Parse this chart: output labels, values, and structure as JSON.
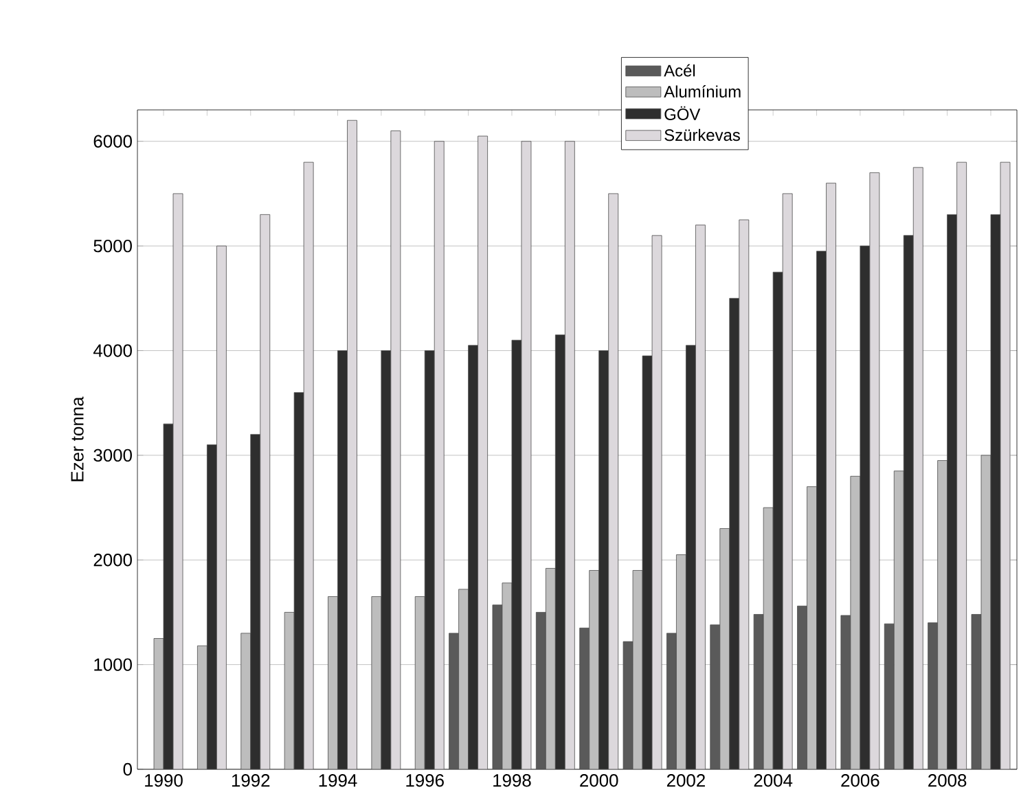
{
  "chart_data": {
    "type": "bar",
    "ylabel": "Ezer tonna",
    "categories": [
      "1990",
      null,
      "1992",
      null,
      "1994",
      null,
      "1996",
      null,
      "1998",
      null,
      "2000",
      null,
      "2002",
      null,
      "2004",
      null,
      "2006",
      null,
      "2008",
      null
    ],
    "series": [
      {
        "name": "Acél",
        "color": "#5a5a5a",
        "values": [
          null,
          null,
          null,
          null,
          null,
          null,
          null,
          1300,
          1570,
          1500,
          1350,
          1220,
          1300,
          1380,
          1480,
          1560,
          1470,
          1390,
          1400,
          1480
        ]
      },
      {
        "name": "Alumínium",
        "color": "#bdbdbd",
        "values": [
          1250,
          1180,
          1300,
          1500,
          1650,
          1650,
          1650,
          1720,
          1780,
          1920,
          1900,
          1900,
          2050,
          2300,
          2500,
          2700,
          2800,
          2850,
          2950,
          3000
        ]
      },
      {
        "name": "GÖV",
        "color": "#2e2e2e",
        "values": [
          3300,
          3100,
          3200,
          3600,
          4000,
          4000,
          4000,
          4050,
          4100,
          4150,
          4000,
          3950,
          4050,
          4500,
          4750,
          4950,
          5000,
          5100,
          5300,
          5300
        ]
      },
      {
        "name": "Szürkevas",
        "color": "#dcd8dc",
        "values": [
          5500,
          5000,
          5300,
          5800,
          6200,
          6100,
          6000,
          6050,
          6000,
          6000,
          5500,
          5100,
          5200,
          5250,
          5500,
          5600,
          5700,
          5750,
          5800,
          5800
        ]
      }
    ],
    "ylim": [
      0,
      6300
    ],
    "yticks": [
      0,
      1000,
      2000,
      3000,
      4000,
      5000,
      6000
    ],
    "grid": "y",
    "legend": "top right"
  }
}
